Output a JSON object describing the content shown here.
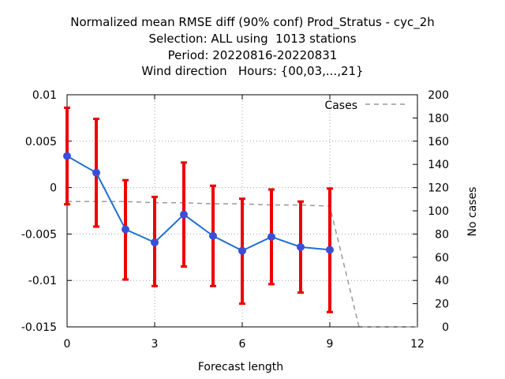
{
  "chart_data": {
    "type": "line",
    "title_lines": [
      "Normalized mean RMSE diff (90% conf) Prod_Stratus - cyc_2h",
      "Selection: ALL using  1013 stations",
      "Period: 20220816-20220831",
      "Wind direction   Hours: {00,03,...,21}"
    ],
    "xlabel": "Forecast length",
    "ylabel": "",
    "y2label": "No cases",
    "xlim": [
      0,
      12
    ],
    "ylim": [
      -0.015,
      0.01
    ],
    "y2lim": [
      0,
      200
    ],
    "xticks": [
      0,
      3,
      6,
      9,
      12
    ],
    "xtick_labels": [
      "0",
      "3",
      "6",
      "9",
      "12"
    ],
    "yticks": [
      0.01,
      0.005,
      0,
      -0.005,
      -0.01,
      -0.015
    ],
    "ytick_labels": [
      "0.01",
      "0.005",
      "0",
      "-0.005",
      "-0.01",
      "-0.015"
    ],
    "y2ticks": [
      200,
      180,
      160,
      140,
      120,
      100,
      80,
      60,
      40,
      20,
      0
    ],
    "y2tick_labels": [
      "200",
      "180",
      "160",
      "140",
      "120",
      "100",
      "80",
      "60",
      "40",
      "20",
      "0"
    ],
    "grid": true,
    "legend_position": "top-right",
    "series": [
      {
        "name": "",
        "color": "#1f6fd1",
        "marker_color": "#3a4fd8",
        "x": [
          0,
          1,
          2,
          3,
          4,
          5,
          6,
          7,
          8,
          9
        ],
        "values": [
          0.0034,
          0.0016,
          -0.0045,
          -0.0059,
          -0.0029,
          -0.0052,
          -0.0068,
          -0.0053,
          -0.0064,
          -0.0067
        ],
        "error_low": [
          -0.0018,
          -0.0042,
          -0.0099,
          -0.0106,
          -0.0085,
          -0.0106,
          -0.0125,
          -0.0104,
          -0.0113,
          -0.0134
        ],
        "error_high": [
          0.0086,
          0.0074,
          0.0008,
          -0.001,
          0.0027,
          0.0002,
          -0.0012,
          -0.0002,
          -0.0015,
          -0.0001
        ],
        "error_color": "#ee0000"
      },
      {
        "name": "Cases",
        "axis": "right",
        "style": "dashed",
        "color": "#999999",
        "x": [
          0,
          1,
          2,
          3,
          4,
          5,
          6,
          7,
          8,
          9,
          10,
          11,
          12
        ],
        "values": [
          108,
          108,
          108,
          107,
          107,
          106,
          106,
          105,
          105,
          104,
          0,
          0,
          0
        ]
      }
    ]
  }
}
